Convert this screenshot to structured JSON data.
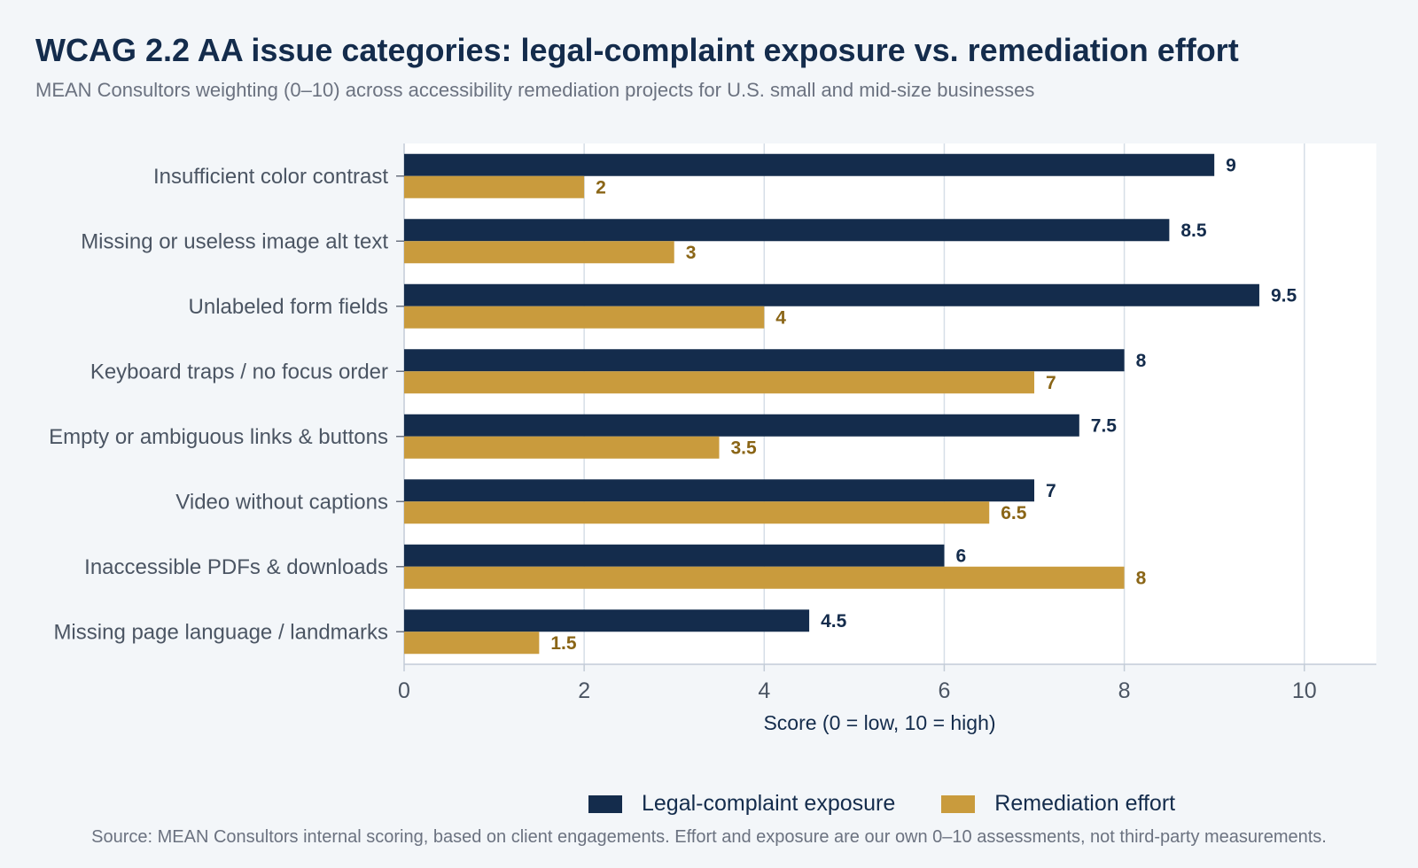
{
  "title": "WCAG 2.2 AA issue categories: legal-complaint exposure vs. remediation effort",
  "subtitle": "MEAN Consultors weighting (0–10) across accessibility remediation projects for U.S. small and mid-size businesses",
  "source": "Source: MEAN Consultors internal scoring, based on client engagements. Effort and exposure are our own 0–10 assessments, not third-party measurements.",
  "chart_data": {
    "type": "bar",
    "orientation": "horizontal",
    "categories": [
      "Insufficient color contrast",
      "Missing or useless image alt text",
      "Unlabeled form fields",
      "Keyboard traps / no focus order",
      "Empty or ambiguous links & buttons",
      "Video without captions",
      "Inaccessible PDFs & downloads",
      "Missing page language / landmarks"
    ],
    "series": [
      {
        "name": "Legal-complaint exposure",
        "color": "#142c4c",
        "label_color": "#142c4c",
        "values": [
          9,
          8.5,
          9.5,
          8,
          7.5,
          7,
          6,
          4.5
        ]
      },
      {
        "name": "Remediation effort",
        "color": "#c99b3d",
        "label_color": "#8a6516",
        "values": [
          2,
          3,
          4,
          7,
          3.5,
          6.5,
          8,
          1.5
        ]
      }
    ],
    "xlabel": "Score (0 = low, 10 = high)",
    "ylabel": "",
    "xlim": [
      0,
      10.8
    ],
    "xticks": [
      0,
      2,
      4,
      6,
      8,
      10
    ],
    "grid": "vertical",
    "legend": "bottom-center"
  }
}
